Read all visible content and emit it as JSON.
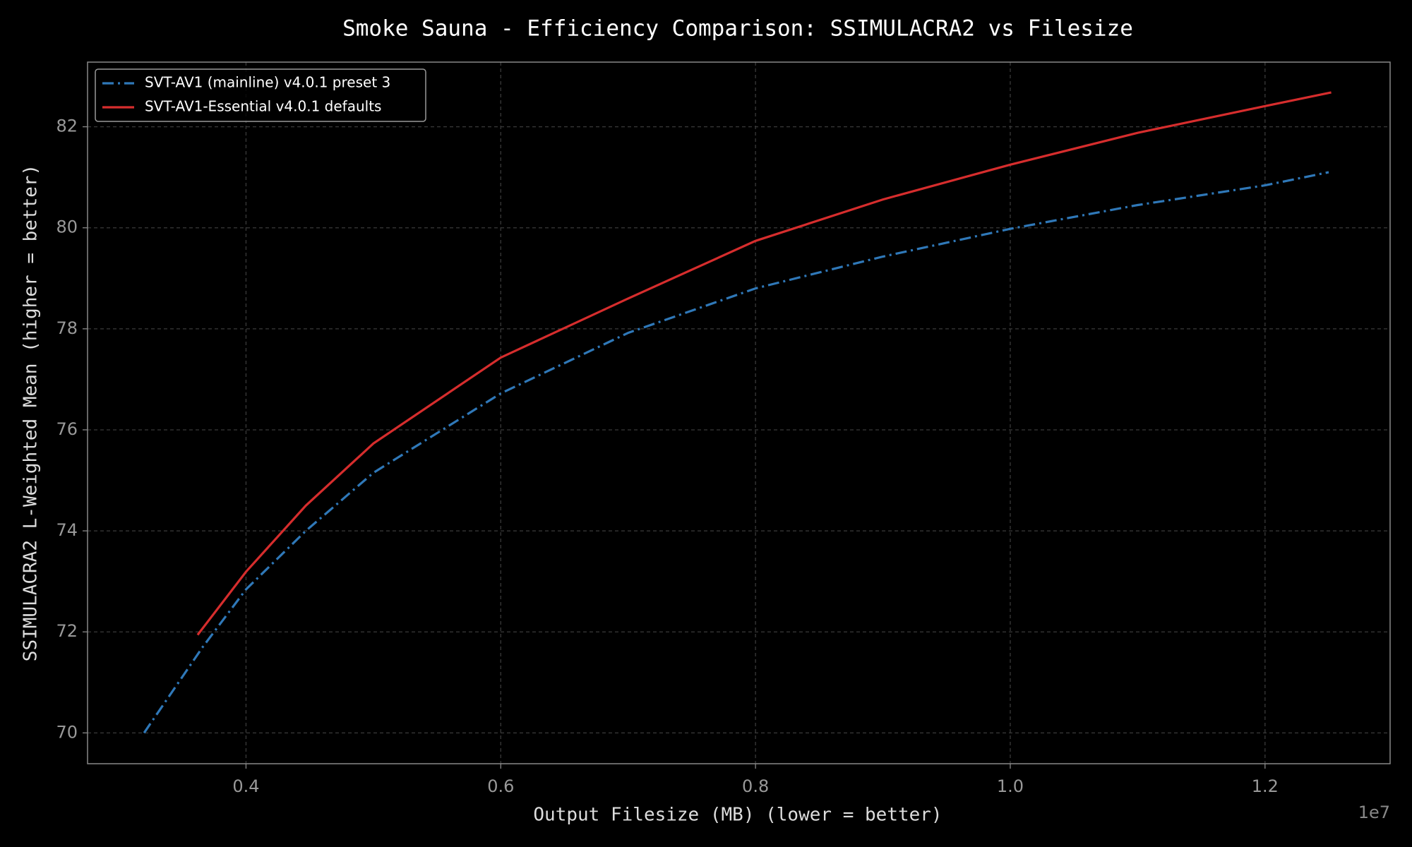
{
  "chart_data": {
    "type": "line",
    "title": "Smoke Sauna - Efficiency Comparison: SSIMULACRA2 vs Filesize",
    "x_label": "Output Filesize (MB) (lower = better)",
    "y_label": "SSIMULACRA2 L-Weighted Mean (higher = better)",
    "x_offset_label": "1e7",
    "series": [
      {
        "name": "SVT-AV1 (mainline) v4.0.1 preset 3",
        "color": "#2f78b8",
        "linestyle": "dashdot",
        "x": [
          3200000,
          3660000,
          4000000,
          4470000,
          5000000,
          6000000,
          7000000,
          8000000,
          9000000,
          10000000,
          11000000,
          12000000,
          12500000
        ],
        "values": [
          70.0,
          71.7,
          72.84,
          74.0,
          75.15,
          76.72,
          77.92,
          78.8,
          79.43,
          79.98,
          80.45,
          80.84,
          81.1
        ]
      },
      {
        "name": "SVT-AV1-Essential v4.0.1 defaults",
        "color": "#d62d2d",
        "linestyle": "solid",
        "x": [
          3620000,
          4000000,
          4470000,
          5000000,
          6000000,
          7000000,
          8000000,
          9000000,
          10000000,
          11000000,
          12000000,
          12520000
        ],
        "values": [
          71.94,
          73.19,
          74.5,
          75.73,
          77.43,
          78.6,
          79.74,
          80.56,
          81.25,
          81.88,
          82.41,
          82.68
        ]
      }
    ],
    "xlim": [
      2756000,
      12982000
    ],
    "xticks": [
      {
        "value": 4000000,
        "label": "0.4"
      },
      {
        "value": 6000000,
        "label": "0.6"
      },
      {
        "value": 8000000,
        "label": "0.8"
      },
      {
        "value": 10000000,
        "label": "1.0"
      },
      {
        "value": 12000000,
        "label": "1.2"
      }
    ],
    "ylim": [
      69.39,
      83.28
    ],
    "yticks": [
      70,
      72,
      74,
      76,
      78,
      80,
      82
    ],
    "grid": true,
    "legend": "upper left"
  }
}
